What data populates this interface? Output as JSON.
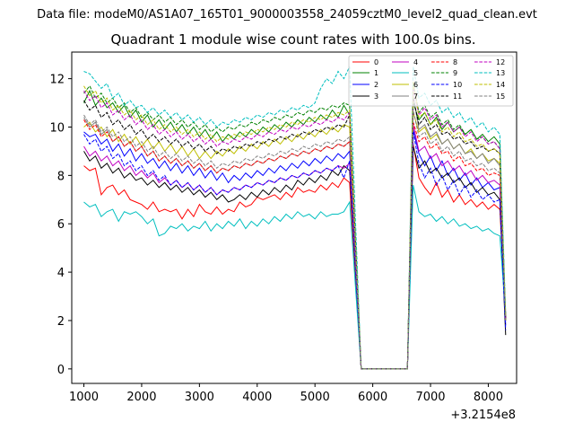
{
  "figure": {
    "suptitle": "Data file: modeM0/AS1A07_165T01_9000003558_24059cztM0_level2_quad_clean.evt"
  },
  "chart_data": {
    "type": "line",
    "title": "Quadrant 1 module wise count rates with 100.0s bins.",
    "xlabel": "",
    "ylabel": "",
    "x_offset_label": "+3.2154e8",
    "xlim": [
      790,
      8490
    ],
    "ylim": [
      -0.6,
      13.1
    ],
    "xticks": [
      1000,
      2000,
      3000,
      4000,
      5000,
      6000,
      7000,
      8000
    ],
    "xtick_labels": [
      "1000",
      "2000",
      "3000",
      "4000",
      "5000",
      "6000",
      "7000",
      "8000"
    ],
    "yticks": [
      0,
      2,
      4,
      6,
      8,
      10,
      12
    ],
    "ytick_labels": [
      "0",
      "2",
      "4",
      "6",
      "8",
      "10",
      "12"
    ],
    "legend_position": "top-right",
    "legend_columns": 4,
    "x_gap_segment": [
      5800,
      5900,
      6000,
      6100,
      6200,
      6300,
      6400,
      6500,
      6600
    ],
    "second_segment_x": [
      6700,
      6800,
      6900,
      7000,
      7100,
      7200,
      7300,
      7400,
      7500,
      7600,
      7700,
      7800,
      7900,
      8000,
      8100,
      8200,
      8300
    ],
    "series": [
      {
        "name": "0",
        "color": "#ff0000",
        "dash": "solid",
        "first": [
          8.4,
          8.2,
          8.3,
          7.2,
          7.5,
          7.6,
          7.2,
          7.4,
          7.0,
          6.9,
          6.8,
          6.6,
          6.9,
          6.5,
          6.6,
          6.5,
          6.6,
          6.2,
          6.6,
          6.3,
          6.8,
          6.5,
          6.4,
          6.7,
          6.4,
          6.6,
          6.5,
          6.9,
          6.7,
          6.8,
          7.1,
          7.0,
          7.1,
          7.2,
          7.0,
          7.3,
          7.1,
          7.5,
          7.3,
          7.4,
          7.3,
          7.6,
          7.4,
          7.7,
          7.5,
          7.9,
          7.7
        ],
        "second": [
          9.3,
          7.9,
          7.5,
          7.2,
          7.7,
          7.1,
          7.4,
          6.9,
          7.2,
          6.8,
          7.0,
          6.7,
          6.9,
          6.6,
          6.8,
          6.6,
          2.3
        ]
      },
      {
        "name": "1",
        "color": "#008000",
        "dash": "solid",
        "first": [
          11.0,
          11.5,
          10.9,
          11.2,
          10.8,
          11.0,
          10.6,
          10.9,
          10.4,
          10.7,
          10.2,
          10.5,
          10.0,
          10.3,
          9.9,
          10.2,
          9.8,
          10.1,
          9.7,
          10.0,
          9.6,
          9.9,
          9.5,
          9.8,
          9.4,
          9.7,
          9.5,
          9.8,
          9.6,
          9.9,
          9.7,
          10.0,
          9.8,
          10.1,
          9.9,
          10.2,
          10.0,
          10.3,
          10.1,
          10.4,
          10.2,
          10.5,
          10.3,
          10.7,
          10.4,
          10.9,
          10.5
        ],
        "second": [
          11.0,
          10.3,
          10.6,
          10.1,
          10.4,
          9.9,
          10.2,
          9.8,
          10.0,
          9.7,
          9.9,
          9.5,
          9.7,
          9.4,
          9.6,
          9.3,
          2.0
        ]
      },
      {
        "name": "2",
        "color": "#0000ff",
        "dash": "solid",
        "first": [
          9.8,
          9.6,
          9.7,
          9.3,
          9.5,
          9.0,
          9.3,
          8.8,
          9.1,
          8.6,
          8.9,
          8.5,
          8.7,
          8.3,
          8.6,
          8.2,
          8.5,
          8.1,
          8.4,
          8.0,
          8.3,
          7.9,
          8.2,
          7.8,
          8.1,
          7.7,
          8.0,
          7.8,
          8.1,
          7.9,
          8.2,
          8.0,
          8.3,
          8.1,
          8.4,
          8.2,
          8.5,
          8.3,
          8.6,
          8.4,
          8.7,
          8.5,
          8.8,
          8.6,
          8.9,
          8.7,
          9.0
        ],
        "second": [
          9.9,
          8.9,
          8.4,
          8.8,
          8.2,
          8.6,
          8.0,
          8.3,
          7.8,
          8.1,
          7.6,
          7.9,
          7.5,
          7.7,
          7.4,
          7.5,
          1.8
        ]
      },
      {
        "name": "3",
        "color": "#000000",
        "dash": "solid",
        "first": [
          9.0,
          8.6,
          8.8,
          8.3,
          8.5,
          8.1,
          8.3,
          7.9,
          8.1,
          7.8,
          7.9,
          7.6,
          7.8,
          7.5,
          7.7,
          7.4,
          7.6,
          7.3,
          7.5,
          7.2,
          7.4,
          7.1,
          7.3,
          7.0,
          7.2,
          6.9,
          7.0,
          7.2,
          7.0,
          7.3,
          7.1,
          7.4,
          7.2,
          7.5,
          7.3,
          7.6,
          7.4,
          7.8,
          7.6,
          7.9,
          7.7,
          8.0,
          7.8,
          8.2,
          8.0,
          8.4,
          8.2
        ],
        "second": [
          9.2,
          8.3,
          8.6,
          8.1,
          8.3,
          7.9,
          8.1,
          7.7,
          7.9,
          7.5,
          7.7,
          7.3,
          7.5,
          7.2,
          7.3,
          7.0,
          1.4
        ]
      },
      {
        "name": "4",
        "color": "#c000c0",
        "dash": "solid",
        "first": [
          9.2,
          8.8,
          9.0,
          8.6,
          8.8,
          8.4,
          8.6,
          8.2,
          8.4,
          8.0,
          8.2,
          7.9,
          8.1,
          7.7,
          7.9,
          7.6,
          7.8,
          7.5,
          7.7,
          7.4,
          7.6,
          7.3,
          7.5,
          7.2,
          7.4,
          7.3,
          7.5,
          7.4,
          7.6,
          7.5,
          7.7,
          7.6,
          7.8,
          7.7,
          7.9,
          7.8,
          8.0,
          7.9,
          8.1,
          8.0,
          8.2,
          8.1,
          8.3,
          8.2,
          8.4,
          8.3,
          8.5
        ],
        "second": [
          10.1,
          9.0,
          9.2,
          8.7,
          8.9,
          8.4,
          8.6,
          8.2,
          8.4,
          8.0,
          8.2,
          7.8,
          8.0,
          7.7,
          7.8,
          7.6,
          2.1
        ]
      },
      {
        "name": "5",
        "color": "#00bfbf",
        "dash": "solid",
        "first": [
          6.9,
          6.7,
          6.8,
          6.3,
          6.5,
          6.6,
          6.1,
          6.5,
          6.4,
          6.5,
          6.3,
          6.0,
          6.2,
          5.5,
          5.6,
          5.9,
          5.8,
          6.0,
          5.7,
          5.9,
          5.8,
          6.1,
          5.7,
          6.0,
          5.8,
          6.1,
          5.9,
          6.2,
          5.8,
          6.1,
          5.9,
          6.2,
          6.0,
          6.3,
          6.1,
          6.4,
          6.2,
          6.5,
          6.3,
          6.4,
          6.2,
          6.5,
          6.3,
          6.4,
          6.4,
          6.5,
          6.9
        ],
        "second": [
          7.6,
          6.5,
          6.3,
          6.4,
          6.1,
          6.3,
          6.0,
          6.2,
          5.9,
          6.0,
          5.8,
          5.9,
          5.7,
          5.8,
          5.6,
          5.5,
          2.2
        ]
      },
      {
        "name": "6",
        "color": "#bfbf00",
        "dash": "solid",
        "first": [
          10.0,
          10.2,
          9.8,
          10.0,
          9.6,
          9.9,
          9.4,
          9.7,
          9.3,
          9.6,
          9.2,
          9.5,
          9.1,
          9.4,
          9.0,
          9.3,
          8.9,
          9.2,
          8.8,
          9.1,
          8.7,
          9.0,
          8.7,
          9.0,
          8.8,
          9.1,
          8.9,
          9.2,
          9.0,
          9.3,
          9.1,
          9.4,
          9.2,
          9.5,
          9.3,
          9.6,
          9.4,
          9.7,
          9.5,
          9.8,
          9.6,
          9.9,
          9.7,
          10.0,
          9.8,
          10.1,
          10.0
        ],
        "second": [
          10.6,
          9.8,
          10.0,
          9.5,
          9.7,
          9.3,
          9.5,
          9.1,
          9.3,
          8.9,
          9.1,
          8.7,
          8.9,
          8.6,
          8.7,
          8.5,
          2.0
        ]
      },
      {
        "name": "7",
        "color": "#808080",
        "dash": "solid",
        "first": [
          10.4,
          10.0,
          10.2,
          9.7,
          9.9,
          9.4,
          9.6,
          9.2,
          9.4,
          9.0,
          9.2,
          8.8,
          9.0,
          8.6,
          8.8,
          8.5,
          8.7,
          8.4,
          8.6,
          8.3,
          8.5,
          8.2,
          8.4,
          8.1,
          8.3,
          8.2,
          8.4,
          8.3,
          8.5,
          8.4,
          8.6,
          8.5,
          8.7,
          8.6,
          8.8,
          8.7,
          8.9,
          8.8,
          9.0,
          8.9,
          9.1,
          9.0,
          9.2,
          9.1,
          9.3,
          9.2,
          9.4
        ],
        "second": [
          11.3,
          9.9,
          10.1,
          9.6,
          9.8,
          9.3,
          9.5,
          9.1,
          9.3,
          8.9,
          9.0,
          8.7,
          8.9,
          8.5,
          8.7,
          8.4,
          2.1
        ]
      },
      {
        "name": "8",
        "color": "#ff0000",
        "dash": "dashed",
        "first": [
          10.3,
          9.9,
          10.1,
          9.6,
          9.8,
          9.4,
          9.6,
          9.2,
          9.4,
          9.0,
          9.2,
          8.8,
          9.0,
          8.6,
          8.8,
          8.5,
          8.7,
          8.4,
          8.6,
          8.3,
          8.5,
          8.2,
          8.4,
          8.1,
          8.3,
          8.2,
          8.4,
          8.3,
          8.5,
          8.4,
          8.6,
          8.5,
          8.7,
          8.6,
          8.8,
          8.7,
          8.9,
          8.8,
          9.0,
          8.9,
          9.1,
          9.0,
          9.2,
          9.1,
          9.3,
          9.2,
          9.4
        ],
        "second": [
          10.2,
          9.4,
          9.6,
          9.1,
          9.3,
          8.9,
          9.0,
          8.6,
          8.8,
          8.4,
          8.5,
          8.2,
          8.3,
          8.0,
          8.1,
          8.0,
          2.0
        ]
      },
      {
        "name": "9",
        "color": "#008000",
        "dash": "dashed",
        "first": [
          11.4,
          11.7,
          11.2,
          11.4,
          11.0,
          11.2,
          10.8,
          11.0,
          10.6,
          10.8,
          10.4,
          10.6,
          10.3,
          10.5,
          10.2,
          10.4,
          10.1,
          10.3,
          10.0,
          10.2,
          9.9,
          10.1,
          9.8,
          10.0,
          9.8,
          10.0,
          9.9,
          10.1,
          10.0,
          10.2,
          10.1,
          10.3,
          10.2,
          10.4,
          10.3,
          10.5,
          10.4,
          10.6,
          10.5,
          10.7,
          10.6,
          10.8,
          10.7,
          10.9,
          10.8,
          11.0,
          10.9
        ],
        "second": [
          11.8,
          10.6,
          10.9,
          10.4,
          10.6,
          10.1,
          10.3,
          9.9,
          10.1,
          9.7,
          9.9,
          9.5,
          9.6,
          9.3,
          9.4,
          9.1,
          2.1
        ]
      },
      {
        "name": "10",
        "color": "#0000ff",
        "dash": "dashed",
        "first": [
          9.7,
          9.3,
          9.5,
          9.0,
          9.2,
          8.7,
          8.9,
          8.4,
          8.6,
          8.2,
          8.4,
          8.0,
          8.2,
          7.8,
          8.0,
          7.6,
          7.8,
          7.5,
          7.7,
          7.4,
          7.6,
          7.3,
          7.5,
          7.2,
          7.4,
          7.3,
          7.5,
          7.4,
          7.6,
          7.5,
          7.7,
          7.6,
          7.8,
          7.7,
          7.9,
          7.8,
          8.0,
          7.9,
          8.1,
          8.0,
          8.2,
          8.1,
          8.3,
          8.2,
          8.4,
          7.9,
          8.6
        ],
        "second": [
          9.8,
          8.5,
          7.9,
          8.3,
          7.6,
          8.0,
          7.4,
          7.8,
          7.2,
          7.6,
          7.1,
          7.4,
          7.0,
          7.2,
          6.9,
          7.0,
          1.6
        ]
      },
      {
        "name": "11",
        "color": "#000000",
        "dash": "dashed",
        "first": [
          11.1,
          10.7,
          10.9,
          10.4,
          10.6,
          10.1,
          10.3,
          9.9,
          10.1,
          9.7,
          9.9,
          9.5,
          9.7,
          9.4,
          9.6,
          9.3,
          9.5,
          9.2,
          9.4,
          9.1,
          9.3,
          9.0,
          9.2,
          8.9,
          9.1,
          9.0,
          9.2,
          9.1,
          9.3,
          9.2,
          9.4,
          9.3,
          9.5,
          9.4,
          9.6,
          9.5,
          9.7,
          9.6,
          9.8,
          9.7,
          9.9,
          9.8,
          10.0,
          9.9,
          10.1,
          10.0,
          10.5
        ],
        "second": [
          11.2,
          10.1,
          10.4,
          9.9,
          10.1,
          9.7,
          9.8,
          9.5,
          9.6,
          9.3,
          9.4,
          9.1,
          9.2,
          9.0,
          9.1,
          8.9,
          2.0
        ]
      },
      {
        "name": "12",
        "color": "#c000c0",
        "dash": "dashed",
        "first": [
          11.5,
          11.1,
          11.3,
          10.8,
          11.0,
          10.5,
          10.7,
          10.3,
          10.5,
          10.1,
          10.3,
          9.9,
          10.1,
          9.7,
          9.9,
          9.6,
          9.8,
          9.5,
          9.7,
          9.4,
          9.6,
          9.3,
          9.5,
          9.2,
          9.4,
          9.3,
          9.5,
          9.4,
          9.6,
          9.5,
          9.7,
          9.6,
          9.8,
          9.7,
          9.9,
          9.8,
          10.0,
          9.9,
          10.1,
          10.0,
          10.2,
          10.1,
          10.3,
          10.2,
          10.4,
          10.3,
          10.6
        ],
        "second": [
          11.6,
          10.5,
          10.8,
          10.3,
          10.5,
          10.0,
          10.2,
          9.8,
          10.0,
          9.6,
          9.8,
          9.4,
          9.6,
          9.3,
          9.4,
          9.1,
          2.1
        ]
      },
      {
        "name": "13",
        "color": "#00bfbf",
        "dash": "dashed",
        "first": [
          12.3,
          12.2,
          11.9,
          11.6,
          11.8,
          11.2,
          11.4,
          10.9,
          11.1,
          10.8,
          10.9,
          10.6,
          10.8,
          10.5,
          10.7,
          10.4,
          10.6,
          10.3,
          10.5,
          10.2,
          10.4,
          10.1,
          10.3,
          10.0,
          10.2,
          10.1,
          10.3,
          10.2,
          10.4,
          10.3,
          10.5,
          10.4,
          10.6,
          10.5,
          10.7,
          10.6,
          10.8,
          10.7,
          10.9,
          10.8,
          11.0,
          11.6,
          12.0,
          11.8,
          12.3,
          12.0,
          12.5
        ],
        "second": [
          12.5,
          11.2,
          11.4,
          10.9,
          11.1,
          10.6,
          10.8,
          10.4,
          10.6,
          10.2,
          10.4,
          10.0,
          10.2,
          9.8,
          10.0,
          9.7,
          2.3
        ]
      },
      {
        "name": "14",
        "color": "#bfbf00",
        "dash": "dashed",
        "first": [
          11.7,
          11.3,
          11.5,
          11.0,
          11.2,
          10.7,
          10.9,
          10.5,
          10.7,
          10.3,
          10.5,
          10.1,
          10.3,
          9.9,
          10.1,
          9.8,
          10.0,
          9.7,
          9.9,
          9.6,
          9.8,
          9.5,
          9.7,
          9.4,
          9.6,
          9.5,
          9.7,
          9.6,
          9.8,
          9.7,
          9.9,
          9.8,
          10.0,
          9.9,
          10.1,
          10.0,
          10.2,
          10.1,
          10.3,
          10.2,
          10.4,
          10.3,
          10.5,
          10.4,
          10.6,
          10.5,
          10.7
        ],
        "second": [
          11.9,
          10.4,
          10.6,
          10.1,
          10.3,
          9.8,
          10.0,
          9.6,
          9.8,
          9.4,
          9.5,
          9.2,
          9.3,
          9.0,
          9.1,
          8.9,
          2.2
        ]
      },
      {
        "name": "15",
        "color": "#808080",
        "dash": "dashed",
        "first": [
          10.5,
          10.1,
          10.3,
          9.8,
          10.0,
          9.6,
          9.8,
          9.4,
          9.6,
          9.2,
          9.4,
          9.0,
          9.2,
          8.8,
          9.0,
          8.7,
          8.9,
          8.6,
          8.8,
          8.5,
          8.7,
          8.4,
          8.6,
          8.3,
          8.5,
          8.4,
          8.6,
          8.5,
          8.7,
          8.6,
          8.8,
          8.7,
          8.9,
          8.8,
          9.0,
          8.9,
          9.1,
          9.0,
          9.2,
          9.1,
          9.3,
          9.2,
          9.4,
          9.3,
          9.5,
          9.4,
          9.6
        ],
        "second": [
          10.7,
          9.6,
          9.8,
          9.3,
          9.5,
          9.0,
          9.2,
          8.8,
          9.0,
          8.6,
          8.7,
          8.4,
          8.5,
          8.2,
          8.3,
          8.1,
          2.0
        ]
      }
    ]
  }
}
